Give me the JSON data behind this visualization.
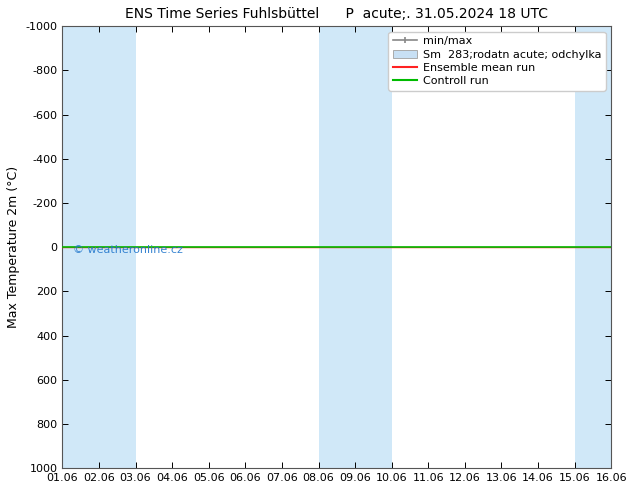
{
  "title": "ENS Time Series Fuhlsbüttel      P  acute;. 31.05.2024 18 UTC",
  "ylabel": "Max Temperature 2m (°C)",
  "xlim": [
    0,
    15
  ],
  "ylim_bottom": -1000,
  "ylim_top": 1000,
  "yticks": [
    -1000,
    -800,
    -600,
    -400,
    -200,
    0,
    200,
    400,
    600,
    800,
    1000
  ],
  "xtick_labels": [
    "01.06",
    "02.06",
    "03.06",
    "04.06",
    "05.06",
    "06.06",
    "07.06",
    "08.06",
    "09.06",
    "10.06",
    "11.06",
    "12.06",
    "13.06",
    "14.06",
    "15.06",
    "16.06"
  ],
  "shaded_columns": [
    0,
    1,
    7,
    8,
    14
  ],
  "shade_color": "#d0e8f8",
  "control_run_y": 0,
  "control_run_color": "#00bb00",
  "ensemble_mean_color": "#ff2222",
  "watermark": "© weatheronline.cz",
  "watermark_color": "#2277cc",
  "bg_color": "#ffffff",
  "plot_bg": "#ffffff",
  "title_fontsize": 10,
  "axis_label_fontsize": 9,
  "tick_fontsize": 8,
  "legend_fontsize": 8
}
